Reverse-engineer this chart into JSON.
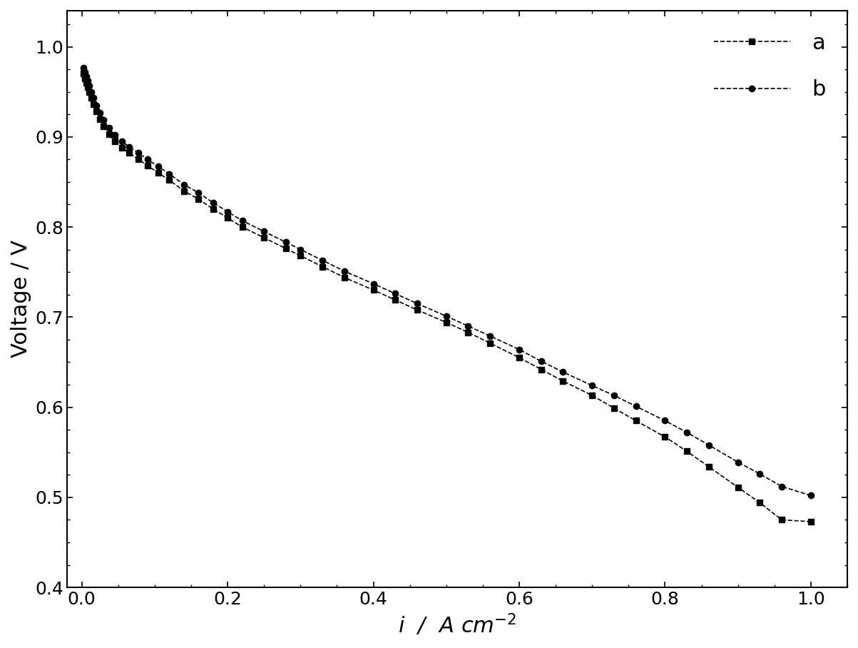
{
  "series_a": {
    "x": [
      0.002,
      0.004,
      0.006,
      0.008,
      0.01,
      0.013,
      0.016,
      0.02,
      0.025,
      0.03,
      0.037,
      0.045,
      0.055,
      0.065,
      0.078,
      0.09,
      0.105,
      0.12,
      0.14,
      0.16,
      0.18,
      0.2,
      0.22,
      0.25,
      0.28,
      0.3,
      0.33,
      0.36,
      0.4,
      0.43,
      0.46,
      0.5,
      0.53,
      0.56,
      0.6,
      0.63,
      0.66,
      0.7,
      0.73,
      0.76,
      0.8,
      0.83,
      0.86,
      0.9,
      0.93,
      0.96,
      1.0
    ],
    "y": [
      0.97,
      0.965,
      0.96,
      0.955,
      0.95,
      0.943,
      0.936,
      0.928,
      0.92,
      0.912,
      0.903,
      0.895,
      0.888,
      0.882,
      0.875,
      0.868,
      0.86,
      0.852,
      0.84,
      0.831,
      0.82,
      0.81,
      0.8,
      0.788,
      0.776,
      0.768,
      0.756,
      0.744,
      0.73,
      0.719,
      0.708,
      0.694,
      0.683,
      0.671,
      0.655,
      0.642,
      0.629,
      0.613,
      0.599,
      0.585,
      0.567,
      0.551,
      0.534,
      0.511,
      0.494,
      0.475,
      0.473
    ],
    "label": "a",
    "marker": "s",
    "linestyle": "--",
    "color": "#000000",
    "markersize": 6
  },
  "series_b": {
    "x": [
      0.002,
      0.004,
      0.006,
      0.008,
      0.01,
      0.013,
      0.016,
      0.02,
      0.025,
      0.03,
      0.037,
      0.045,
      0.055,
      0.065,
      0.078,
      0.09,
      0.105,
      0.12,
      0.14,
      0.16,
      0.18,
      0.2,
      0.22,
      0.25,
      0.28,
      0.3,
      0.33,
      0.36,
      0.4,
      0.43,
      0.46,
      0.5,
      0.53,
      0.56,
      0.6,
      0.63,
      0.66,
      0.7,
      0.73,
      0.76,
      0.8,
      0.83,
      0.86,
      0.9,
      0.93,
      0.96,
      1.0
    ],
    "y": [
      0.977,
      0.972,
      0.967,
      0.962,
      0.957,
      0.95,
      0.943,
      0.935,
      0.927,
      0.919,
      0.91,
      0.902,
      0.895,
      0.889,
      0.882,
      0.875,
      0.867,
      0.859,
      0.847,
      0.838,
      0.827,
      0.817,
      0.807,
      0.795,
      0.783,
      0.775,
      0.763,
      0.751,
      0.737,
      0.726,
      0.715,
      0.701,
      0.69,
      0.679,
      0.664,
      0.651,
      0.639,
      0.624,
      0.613,
      0.601,
      0.585,
      0.572,
      0.558,
      0.539,
      0.526,
      0.512,
      0.502
    ],
    "label": "b",
    "marker": "o",
    "linestyle": "--",
    "color": "#000000",
    "markersize": 6
  },
  "xlabel": "$i$  /  A cm$^{-2}$",
  "ylabel": "Voltage / V",
  "xlim": [
    -0.02,
    1.05
  ],
  "ylim": [
    0.4,
    1.04
  ],
  "xticks": [
    0.0,
    0.2,
    0.4,
    0.6,
    0.8,
    1.0
  ],
  "yticks": [
    0.4,
    0.5,
    0.6,
    0.7,
    0.8,
    0.9,
    1.0
  ],
  "background_color": "#ffffff",
  "legend_loc": "upper right",
  "legend_fontsize": 22,
  "axis_fontsize": 22,
  "tick_fontsize": 18
}
